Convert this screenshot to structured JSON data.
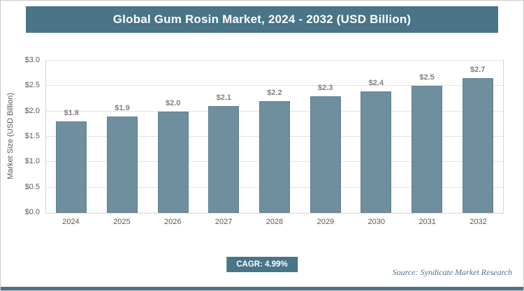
{
  "title": "Global Gum Rosin Market, 2024 - 2032 (USD Billion)",
  "colors": {
    "banner": "#4a7488",
    "bar_fill": "#6f8f9f",
    "bar_border": "#5e8090",
    "accent": "#4a7488"
  },
  "chart_data": {
    "type": "bar",
    "title": "Global Gum Rosin Market, 2024 - 2032 (USD Billion)",
    "categories": [
      "2024",
      "2025",
      "2026",
      "2027",
      "2028",
      "2029",
      "2030",
      "2031",
      "2032"
    ],
    "values": [
      1.8,
      1.9,
      2.0,
      2.1,
      2.2,
      2.3,
      2.4,
      2.5,
      2.65
    ],
    "value_labels": [
      "$1.8",
      "$1.9",
      "$2.0",
      "$2.1",
      "$2.2",
      "$2.3",
      "$2.4",
      "$2.5",
      "$2.7"
    ],
    "xlabel": "",
    "ylabel": "Market Size (USD Billion)",
    "ylim": [
      0,
      3
    ],
    "yticks": [
      "$0.0",
      "$0.5",
      "$1.0",
      "$1.5",
      "$2.0",
      "$2.5",
      "$3.0"
    ],
    "grid": true,
    "legend_position": "none"
  },
  "footer": {
    "cagr_label": "CAGR: 4.99%",
    "source": "Source: Syndicate Market Research"
  }
}
